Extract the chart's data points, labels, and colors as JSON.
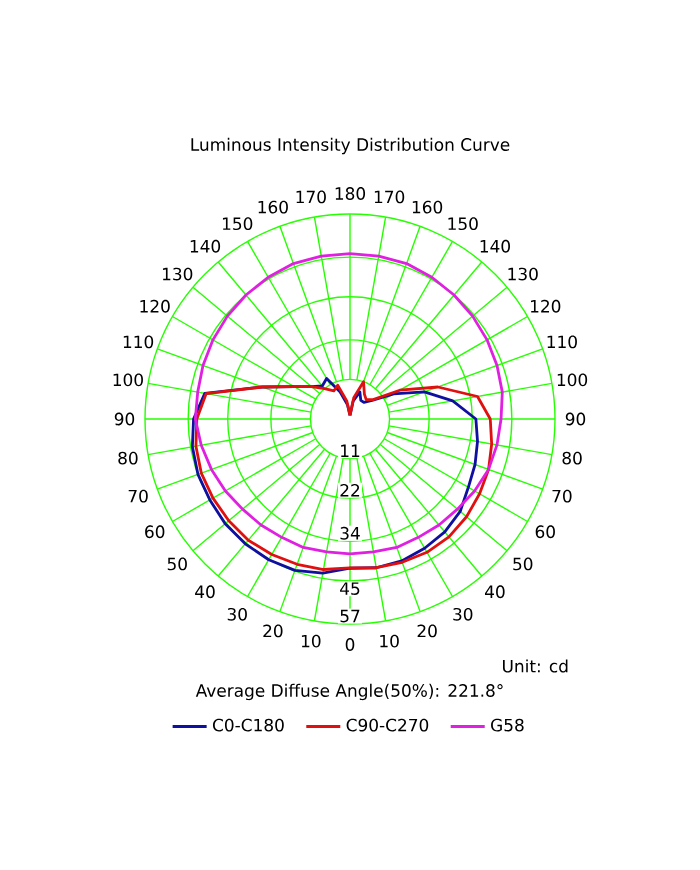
{
  "chart_data": {
    "type": "radar",
    "title": "Luminous Intensity Distribution Curve",
    "categories": [
      "180",
      "170",
      "160",
      "150",
      "140",
      "130",
      "120",
      "110",
      "100",
      "90",
      "80",
      "70",
      "60",
      "50",
      "40",
      "30",
      "20",
      "10",
      "0",
      "10",
      "20",
      "30",
      "40",
      "50",
      "60",
      "70",
      "80",
      "90",
      "100",
      "110",
      "120",
      "130",
      "140",
      "150",
      "160",
      "170"
    ],
    "series": [
      {
        "name": "C0-C180",
        "color": "#1010a0",
        "values": [
          1,
          5,
          8,
          6,
          6,
          8,
          14,
          22,
          29,
          35,
          36,
          37,
          38,
          40,
          41,
          41.5,
          42,
          42,
          41.5,
          43.5,
          44.8,
          45.2,
          45.3,
          45.3,
          45,
          45,
          44.5,
          43.5,
          41,
          26,
          18,
          14,
          12,
          13,
          8,
          4
        ]
      },
      {
        "name": "C90-C270",
        "color": "#e01010",
        "values": [
          1,
          6,
          11,
          8,
          7,
          8.4,
          16,
          26,
          36,
          39,
          40,
          41,
          41.6,
          42.3,
          42.8,
          42.8,
          42.4,
          42,
          41.4,
          42.5,
          43,
          43.5,
          44,
          44,
          44,
          44,
          43.5,
          42.6,
          40.6,
          26,
          18,
          14,
          11,
          9,
          10,
          5
        ]
      },
      {
        "name": "G58",
        "color": "#e020e0",
        "values": [
          46,
          46,
          46,
          45.5,
          45,
          44.5,
          44,
          43.5,
          43,
          42,
          41.5,
          41,
          40,
          39,
          38.5,
          38,
          38,
          37.5,
          37.5,
          37.5,
          38,
          38,
          38.5,
          39,
          40,
          41,
          42,
          43,
          43,
          43.5,
          44,
          44.5,
          45,
          45.5,
          46,
          46
        ]
      }
    ],
    "ylim": [
      0,
      57
    ],
    "yticks": [
      11,
      22,
      34,
      45,
      57
    ],
    "grid": true,
    "legend": "bottom",
    "annotations": [
      "Unit: cd",
      "Average Diffuse Angle(50%): 221.8°"
    ]
  }
}
